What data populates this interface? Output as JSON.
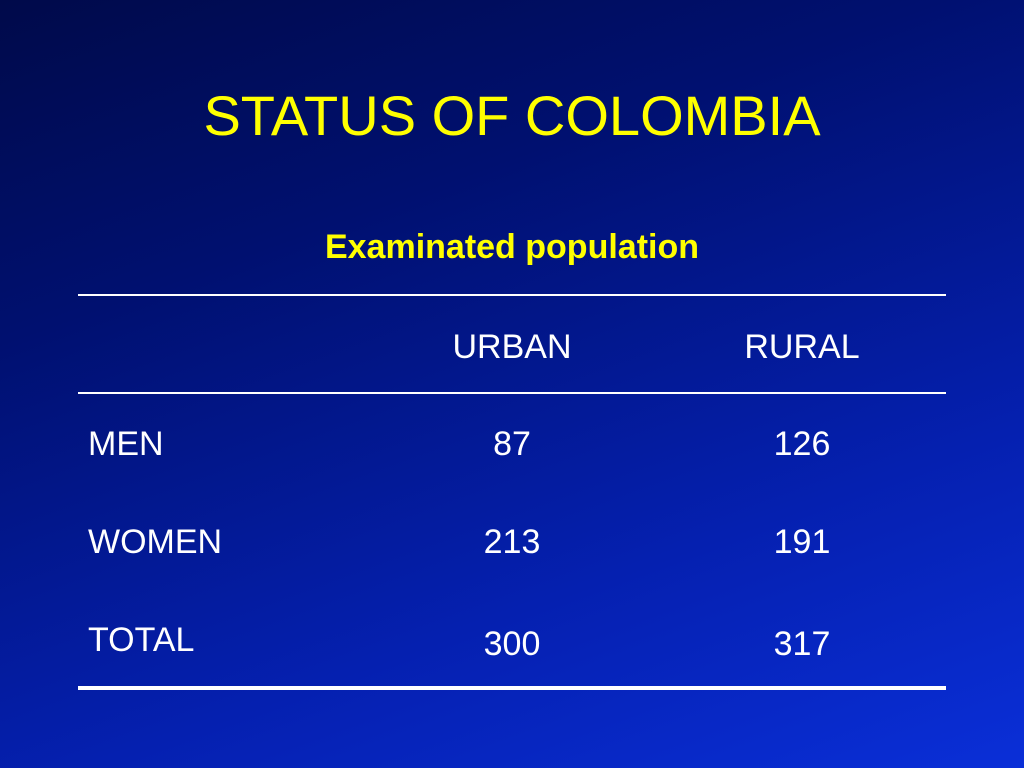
{
  "slide": {
    "title": "STATUS OF COLOMBIA",
    "subtitle": "Examinated population"
  },
  "table": {
    "columns": [
      "",
      "URBAN",
      "RURAL"
    ],
    "rows": [
      {
        "label": "MEN",
        "urban": "87",
        "rural": "126"
      },
      {
        "label": "WOMEN",
        "urban": "213",
        "rural": "191"
      },
      {
        "label": "TOTAL",
        "urban": "300",
        "rural": "317"
      }
    ]
  },
  "colors": {
    "title": "#ffff00",
    "text": "#ffffff",
    "background": "#0520b0"
  }
}
